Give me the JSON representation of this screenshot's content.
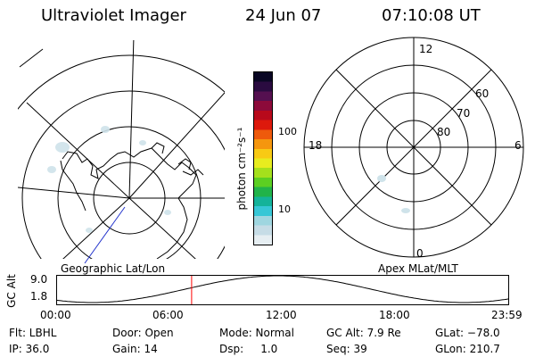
{
  "header": {
    "instrument": "Ultraviolet Imager",
    "date": "24 Jun 07",
    "time": "07:10:08 UT"
  },
  "left_panel": {
    "caption": "Geographic Lat/Lon"
  },
  "right_panel": {
    "caption": "Apex MLat/MLT",
    "mlt_labels": {
      "top": "12",
      "left": "18",
      "right": "6",
      "bottom": "0"
    },
    "lat_labels": [
      "60",
      "70",
      "80"
    ]
  },
  "colorbar": {
    "unit": "photon cm⁻²s⁻¹",
    "ticks": [
      {
        "label": "100",
        "fraction": 0.72
      },
      {
        "label": "10",
        "fraction": 0.2
      }
    ],
    "colors": [
      "#e6eef2",
      "#c6dce6",
      "#9fd6e0",
      "#36c7d6",
      "#14b39a",
      "#21b34a",
      "#5ccf22",
      "#a5e01c",
      "#e7ec1f",
      "#f8ca14",
      "#f5960e",
      "#ee5a0c",
      "#dd190c",
      "#b8091b",
      "#8c0a3a",
      "#551050",
      "#2a0b40",
      "#0a0724"
    ]
  },
  "orbit_plot": {
    "ylabel": "GC Alt",
    "y_ticks": [
      "9.0",
      "1.8"
    ],
    "x_ticks": [
      "00:00",
      "06:00",
      "12:00",
      "18:00",
      "23:59"
    ],
    "current_fraction": 0.299,
    "curve_color": "#000000",
    "marker_color": "#ff0000"
  },
  "info": {
    "row1": {
      "filter": "Flt: LBHL",
      "door": "Door: Open",
      "mode": "Mode: Normal",
      "gc_alt": "GC Alt: 7.9 Re",
      "glat": "GLat: −78.0"
    },
    "row2": {
      "ip": "IP: 36.0",
      "gain": "Gain: 14",
      "dsp": "Dsp:     1.0",
      "seq": "Seq: 39",
      "glon": "GLon: 210.7"
    }
  }
}
